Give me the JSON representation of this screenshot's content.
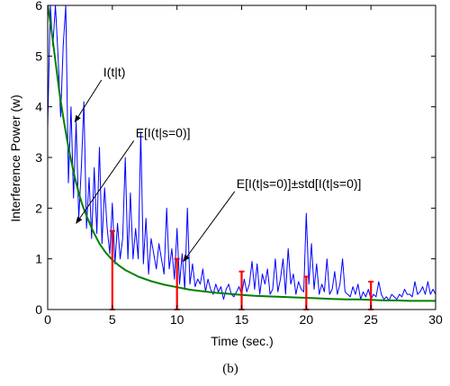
{
  "caption": "(b)",
  "chart_data": {
    "type": "line",
    "xlabel": "Time (sec.)",
    "ylabel": "Interference Power (w)",
    "xlim": [
      0,
      30
    ],
    "ylim": [
      0,
      6
    ],
    "xticks": [
      0,
      5,
      10,
      15,
      20,
      25,
      30
    ],
    "yticks": [
      0,
      1,
      2,
      3,
      4,
      5,
      6
    ],
    "grid": false,
    "annotations": [
      {
        "label": "I(t|t)",
        "text_at": [
          4.3,
          4.6
        ],
        "arrow_to": [
          2.1,
          3.7
        ]
      },
      {
        "label": "E[I(t|s=0)]",
        "text_at": [
          6.8,
          3.4
        ],
        "arrow_to": [
          2.2,
          1.7
        ]
      },
      {
        "label": "E[I(t|s=0)]±std[I(t|s=0)]",
        "text_at": [
          14.6,
          2.4
        ],
        "arrow_to": [
          10.5,
          0.95
        ]
      }
    ],
    "series": [
      {
        "name": "I(t|t)",
        "color": "#0000ff",
        "x": [
          0.0,
          0.2,
          0.4,
          0.6,
          0.8,
          1.0,
          1.2,
          1.4,
          1.6,
          1.8,
          2.0,
          2.2,
          2.4,
          2.6,
          2.8,
          3.0,
          3.2,
          3.4,
          3.6,
          3.8,
          4.0,
          4.2,
          4.4,
          4.6,
          4.8,
          5.0,
          5.2,
          5.4,
          5.6,
          5.8,
          6.0,
          6.2,
          6.4,
          6.6,
          6.8,
          7.0,
          7.2,
          7.4,
          7.6,
          7.8,
          8.0,
          8.2,
          8.4,
          8.6,
          8.8,
          9.0,
          9.2,
          9.4,
          9.6,
          9.8,
          10.0,
          10.2,
          10.4,
          10.6,
          10.8,
          11.0,
          11.2,
          11.4,
          11.6,
          11.8,
          12.0,
          12.2,
          12.4,
          12.6,
          12.8,
          13.0,
          13.2,
          13.4,
          13.6,
          13.8,
          14.0,
          14.2,
          14.4,
          14.6,
          14.8,
          15.0,
          15.2,
          15.4,
          15.6,
          15.8,
          16.0,
          16.2,
          16.4,
          16.6,
          16.8,
          17.0,
          17.2,
          17.4,
          17.6,
          17.8,
          18.0,
          18.2,
          18.4,
          18.6,
          18.8,
          19.0,
          19.2,
          19.4,
          19.6,
          19.8,
          20.0,
          20.2,
          20.4,
          20.6,
          20.8,
          21.0,
          21.2,
          21.4,
          21.6,
          21.8,
          22.0,
          22.2,
          22.4,
          22.6,
          22.8,
          23.0,
          23.2,
          23.4,
          23.6,
          23.8,
          24.0,
          24.2,
          24.4,
          24.6,
          24.8,
          25.0,
          25.2,
          25.4,
          25.6,
          25.8,
          26.0,
          26.2,
          26.4,
          26.6,
          26.8,
          27.0,
          27.2,
          27.4,
          27.6,
          27.8,
          28.0,
          28.2,
          28.4,
          28.6,
          28.8,
          29.0,
          29.2,
          29.4,
          29.6,
          29.8,
          30.0
        ],
        "y": [
          3.6,
          6.0,
          5.2,
          6.0,
          5.0,
          3.8,
          5.2,
          6.0,
          2.5,
          4.0,
          2.2,
          3.7,
          1.8,
          2.8,
          4.1,
          1.6,
          2.6,
          1.4,
          2.8,
          1.5,
          3.2,
          1.3,
          2.4,
          1.6,
          1.1,
          2.1,
          0.9,
          1.7,
          1.0,
          1.4,
          3.0,
          1.0,
          2.3,
          1.0,
          1.6,
          1.0,
          3.5,
          0.9,
          1.8,
          0.7,
          1.4,
          1.1,
          0.8,
          1.3,
          1.0,
          0.7,
          2.0,
          0.8,
          1.2,
          0.6,
          1.6,
          0.5,
          1.1,
          0.4,
          2.0,
          0.5,
          0.9,
          0.45,
          0.6,
          0.5,
          0.8,
          0.35,
          0.6,
          0.4,
          0.3,
          0.5,
          0.35,
          0.45,
          0.2,
          0.4,
          0.5,
          0.3,
          0.25,
          0.35,
          0.45,
          0.3,
          0.6,
          0.35,
          0.5,
          0.95,
          0.4,
          0.9,
          0.3,
          0.7,
          0.5,
          0.8,
          0.3,
          0.4,
          1.0,
          0.35,
          0.6,
          1.0,
          0.3,
          1.2,
          0.5,
          0.7,
          0.3,
          0.55,
          0.4,
          0.35,
          1.9,
          0.5,
          1.3,
          0.4,
          0.9,
          0.3,
          0.5,
          0.35,
          1.0,
          0.3,
          0.4,
          0.75,
          0.3,
          0.5,
          1.0,
          0.35,
          0.3,
          0.25,
          0.45,
          0.3,
          0.5,
          0.2,
          0.35,
          0.25,
          0.4,
          0.2,
          0.3,
          0.25,
          0.55,
          0.3,
          0.2,
          0.25,
          0.18,
          0.3,
          0.25,
          0.2,
          0.3,
          0.25,
          0.4,
          0.3,
          0.3,
          0.25,
          0.55,
          0.3,
          0.35,
          0.45,
          0.3,
          0.55,
          0.3,
          0.4,
          0.3
        ]
      },
      {
        "name": "E[I(t|s=0)]",
        "color": "#008000",
        "x": [
          0.0,
          0.3,
          0.6,
          0.9,
          1.2,
          1.5,
          1.8,
          2.1,
          2.4,
          2.7,
          3.0,
          3.5,
          4.0,
          4.5,
          5.0,
          5.5,
          6.0,
          7.0,
          8.0,
          9.0,
          10.0,
          11.0,
          12.0,
          13.0,
          14.0,
          15.0,
          16.0,
          17.0,
          18.0,
          19.0,
          20.0,
          21.0,
          22.0,
          23.0,
          24.0,
          25.0,
          26.0,
          27.0,
          28.0,
          29.0,
          30.0
        ],
        "y": [
          6.0,
          5.5,
          4.9,
          4.3,
          3.8,
          3.35,
          2.95,
          2.6,
          2.3,
          2.05,
          1.85,
          1.55,
          1.3,
          1.12,
          0.98,
          0.87,
          0.78,
          0.65,
          0.56,
          0.49,
          0.44,
          0.39,
          0.36,
          0.33,
          0.31,
          0.29,
          0.27,
          0.26,
          0.25,
          0.24,
          0.23,
          0.22,
          0.21,
          0.2,
          0.2,
          0.19,
          0.18,
          0.18,
          0.17,
          0.17,
          0.17
        ]
      },
      {
        "name": "E[I(t|s=0)]±std[I(t|s=0)]",
        "color": "#ff0000",
        "type": "errorbar",
        "x": [
          5,
          10,
          15,
          20,
          25
        ],
        "low": [
          0.0,
          0.0,
          0.0,
          0.0,
          0.0
        ],
        "high": [
          1.55,
          1.0,
          0.75,
          0.65,
          0.55
        ]
      }
    ]
  }
}
